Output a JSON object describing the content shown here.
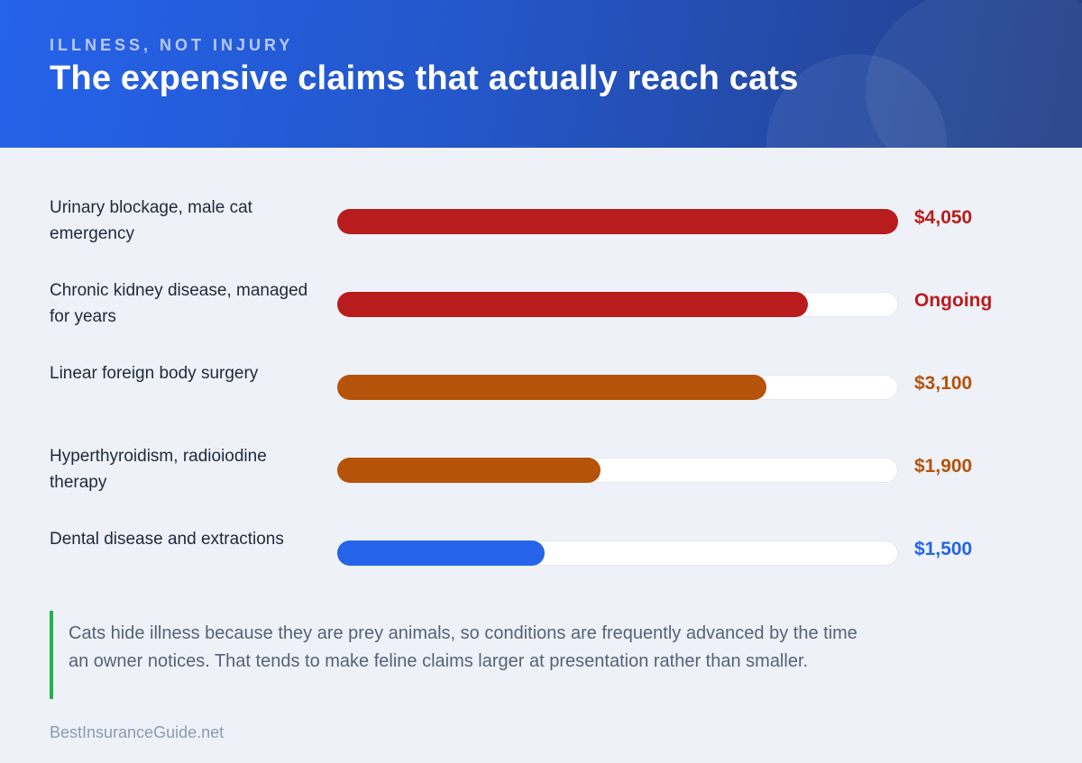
{
  "header": {
    "eyebrow": "ILLNESS, NOT INJURY",
    "title": "The expensive claims that actually reach cats"
  },
  "chart_data": {
    "type": "bar",
    "orientation": "horizontal",
    "xlim": [
      0,
      4050
    ],
    "grid": false,
    "bars": [
      {
        "label": "Urinary blockage, male cat emergency",
        "value": 4050,
        "display": "$4,050",
        "color": "#b91c1c"
      },
      {
        "label": "Chronic kidney disease, managed for years",
        "value": 3400,
        "display": "Ongoing",
        "color": "#b91c1c"
      },
      {
        "label": "Linear foreign body surgery",
        "value": 3100,
        "display": "$3,100",
        "color": "#b45309"
      },
      {
        "label": "Hyperthyroidism, radioiodine therapy",
        "value": 1900,
        "display": "$1,900",
        "color": "#b45309"
      },
      {
        "label": "Dental disease and extractions",
        "value": 1500,
        "display": "$1,500",
        "color": "#2563eb"
      }
    ]
  },
  "note": {
    "text": "Cats hide illness because they are prey animals, so conditions are frequently advanced by the time an owner notices. That tends to make feline claims larger at presentation rather than smaller."
  },
  "footer": {
    "source": "BestInsuranceGuide.net"
  },
  "colors": {
    "header_start": "#2563eb",
    "header_end": "#233f86",
    "note_accent": "#22b24c"
  }
}
